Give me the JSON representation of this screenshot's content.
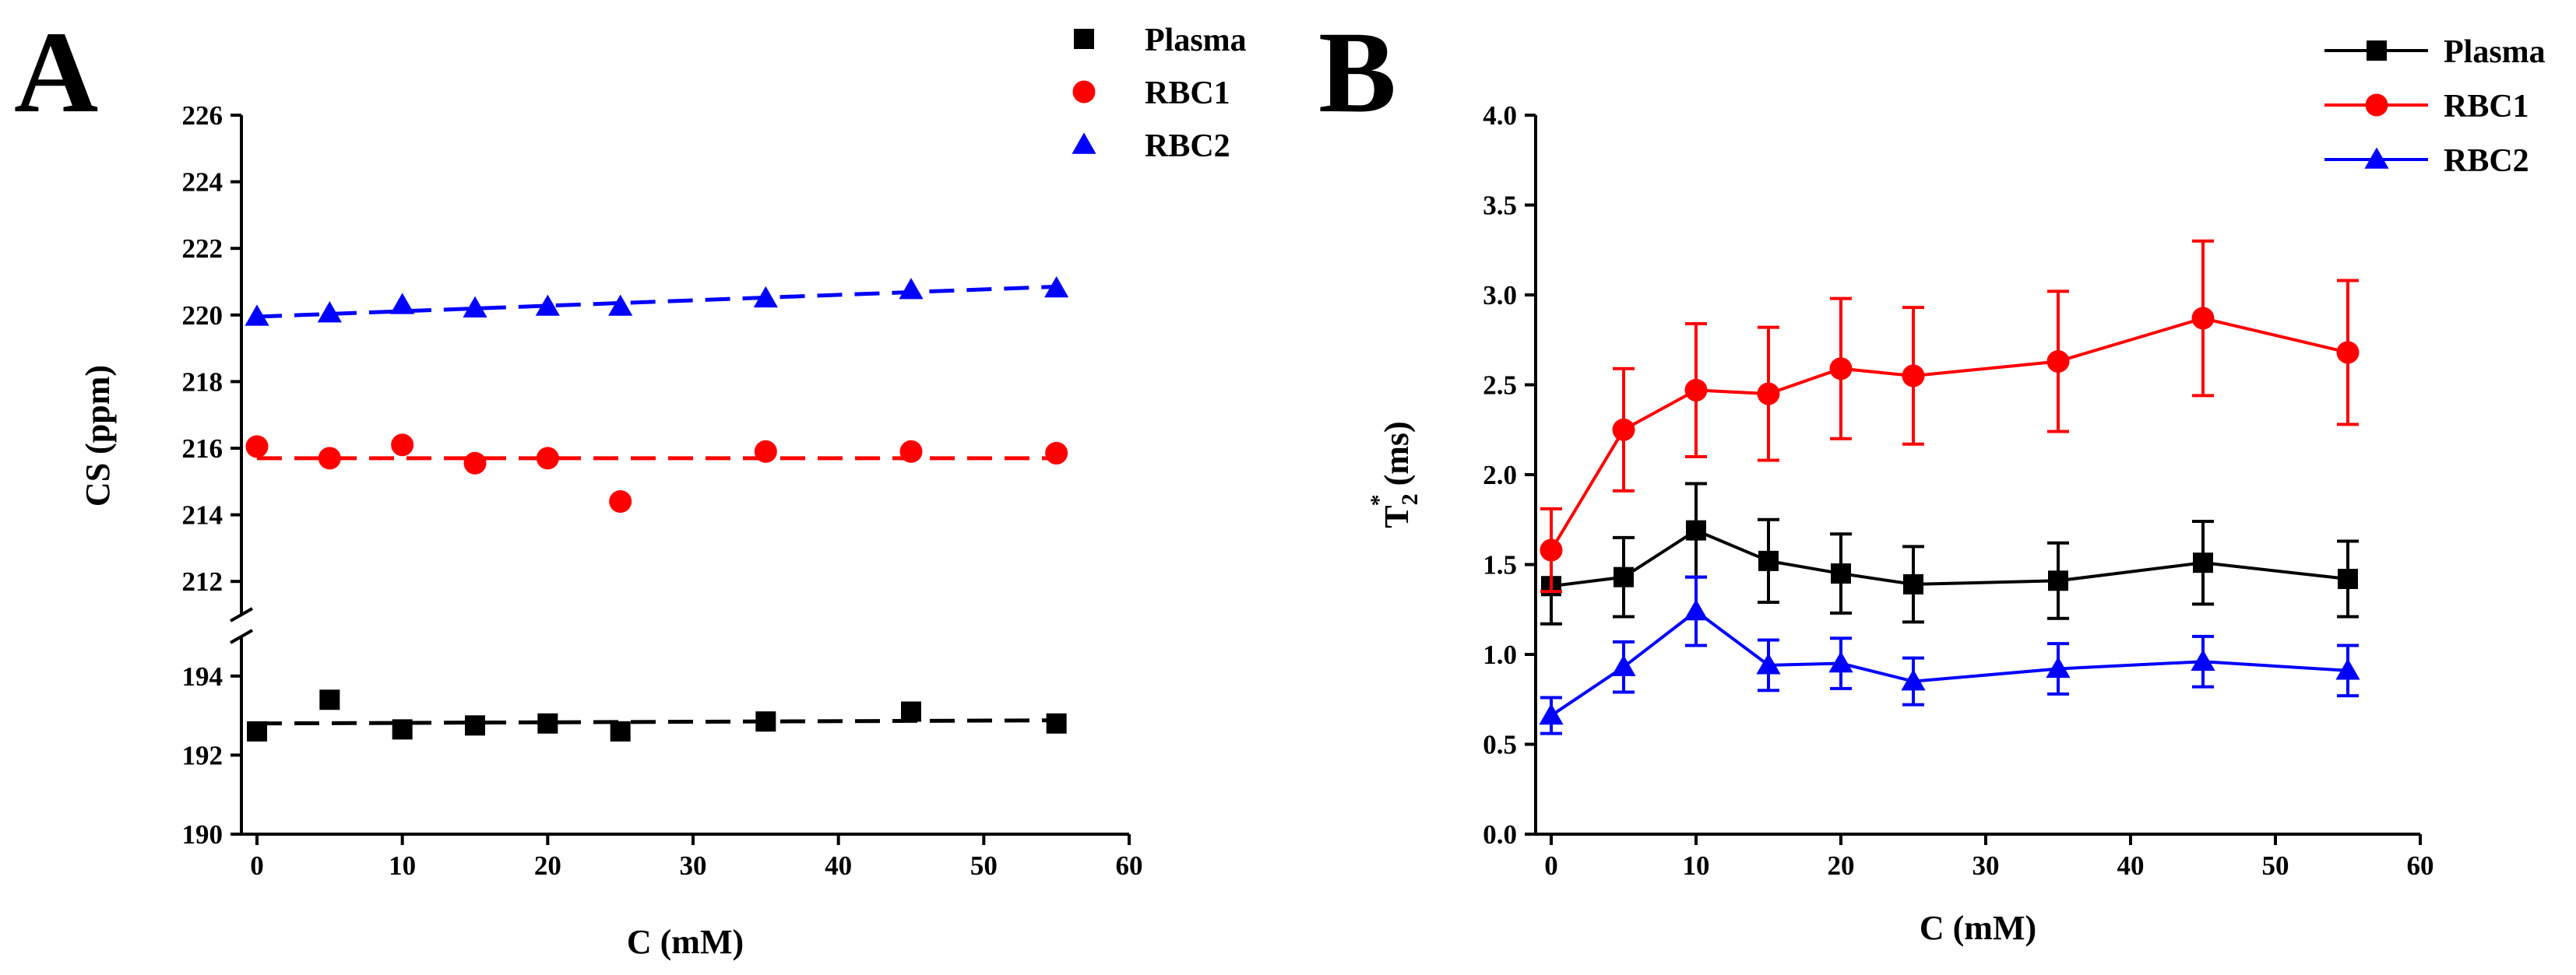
{
  "chart_data": [
    {
      "panel": "A",
      "type": "scatter",
      "xlabel": "C (mM)",
      "ylabel": "CS (ppm)",
      "xlim": [
        0,
        60
      ],
      "xticks": [
        0,
        10,
        20,
        30,
        40,
        50,
        60
      ],
      "ylim_lower": [
        190,
        195
      ],
      "ylim_upper": [
        211,
        226
      ],
      "yticks_lower": [
        190,
        192,
        194
      ],
      "yticks_upper": [
        212,
        214,
        216,
        218,
        220,
        222,
        224,
        226
      ],
      "axis_break": true,
      "legend_position": "top-right",
      "series": [
        {
          "name": "Plasma",
          "color": "#000000",
          "marker": "square",
          "x": [
            0,
            5,
            10,
            15,
            20,
            25,
            35,
            45,
            55
          ],
          "y": [
            192.6,
            193.4,
            192.65,
            192.75,
            192.8,
            192.6,
            192.85,
            193.1,
            192.8
          ],
          "fit": [
            192.8,
            192.88
          ]
        },
        {
          "name": "RBC1",
          "color": "#ff0000",
          "marker": "circle",
          "x": [
            0,
            5,
            10,
            15,
            20,
            25,
            35,
            45,
            55
          ],
          "y": [
            216.05,
            215.7,
            216.1,
            215.55,
            215.7,
            214.4,
            215.9,
            215.9,
            215.85
          ],
          "fit": [
            215.7,
            215.7
          ]
        },
        {
          "name": "RBC2",
          "color": "#0000ff",
          "marker": "triangle",
          "x": [
            0,
            5,
            10,
            15,
            20,
            25,
            35,
            45,
            55
          ],
          "y": [
            219.95,
            220.05,
            220.3,
            220.2,
            220.25,
            220.25,
            220.5,
            220.75,
            220.8
          ],
          "fit": [
            219.95,
            220.85
          ]
        }
      ]
    },
    {
      "panel": "B",
      "type": "line",
      "xlabel": "C (mM)",
      "ylabel_base": "T",
      "ylabel_sub": "2",
      "ylabel_sup": "*",
      "ylabel_unit": " (ms)",
      "xlim": [
        0,
        60
      ],
      "xticks": [
        0,
        10,
        20,
        30,
        40,
        50,
        60
      ],
      "ylim": [
        0,
        4
      ],
      "yticks": [
        "0.0",
        "0.5",
        "1.0",
        "1.5",
        "2.0",
        "2.5",
        "3.0",
        "3.5",
        "4.0"
      ],
      "legend_position": "top-right",
      "series": [
        {
          "name": "Plasma",
          "color": "#000000",
          "marker": "square",
          "x": [
            0,
            5,
            10,
            15,
            20,
            25,
            35,
            45,
            55
          ],
          "y": [
            1.38,
            1.43,
            1.69,
            1.52,
            1.45,
            1.39,
            1.41,
            1.51,
            1.42
          ],
          "err": [
            0.21,
            0.22,
            0.26,
            0.23,
            0.22,
            0.21,
            0.21,
            0.23,
            0.21
          ]
        },
        {
          "name": "RBC1",
          "color": "#ff0000",
          "marker": "circle",
          "x": [
            0,
            5,
            10,
            15,
            20,
            25,
            35,
            45,
            55
          ],
          "y": [
            1.58,
            2.25,
            2.47,
            2.45,
            2.59,
            2.55,
            2.63,
            2.87,
            2.68
          ],
          "err": [
            0.23,
            0.34,
            0.37,
            0.37,
            0.39,
            0.38,
            0.39,
            0.43,
            0.4
          ]
        },
        {
          "name": "RBC2",
          "color": "#0000ff",
          "marker": "triangle",
          "x": [
            0,
            5,
            10,
            15,
            20,
            25,
            35,
            45,
            55
          ],
          "y": [
            0.66,
            0.93,
            1.24,
            0.94,
            0.95,
            0.85,
            0.92,
            0.96,
            0.91
          ],
          "err": [
            0.1,
            0.14,
            0.19,
            0.14,
            0.14,
            0.13,
            0.14,
            0.14,
            0.14
          ]
        }
      ]
    }
  ]
}
